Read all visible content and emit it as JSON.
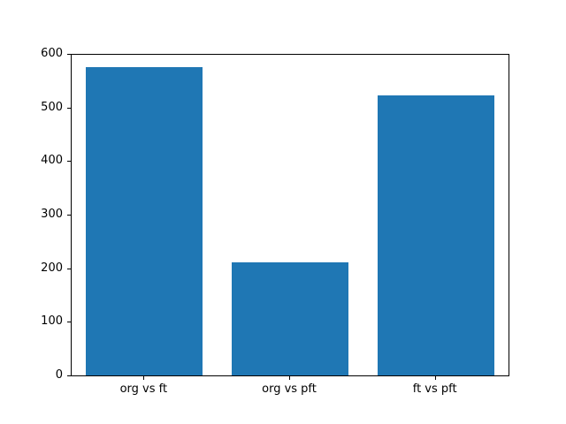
{
  "chart_data": {
    "type": "bar",
    "categories": [
      "org vs ft",
      "org vs pft",
      "ft vs pft"
    ],
    "values": [
      577,
      212,
      524
    ],
    "title": "",
    "xlabel": "",
    "ylabel": "",
    "ylim": [
      0,
      600
    ],
    "yticks": [
      "0",
      "100",
      "200",
      "300",
      "400",
      "500",
      "600"
    ],
    "ytick_values": [
      0,
      100,
      200,
      300,
      400,
      500,
      600
    ],
    "bar_color": "#1f77b4",
    "bar_width_fraction": 0.8,
    "grid": false,
    "legend": null,
    "spine_color": "#000000",
    "background_color": "#ffffff"
  }
}
